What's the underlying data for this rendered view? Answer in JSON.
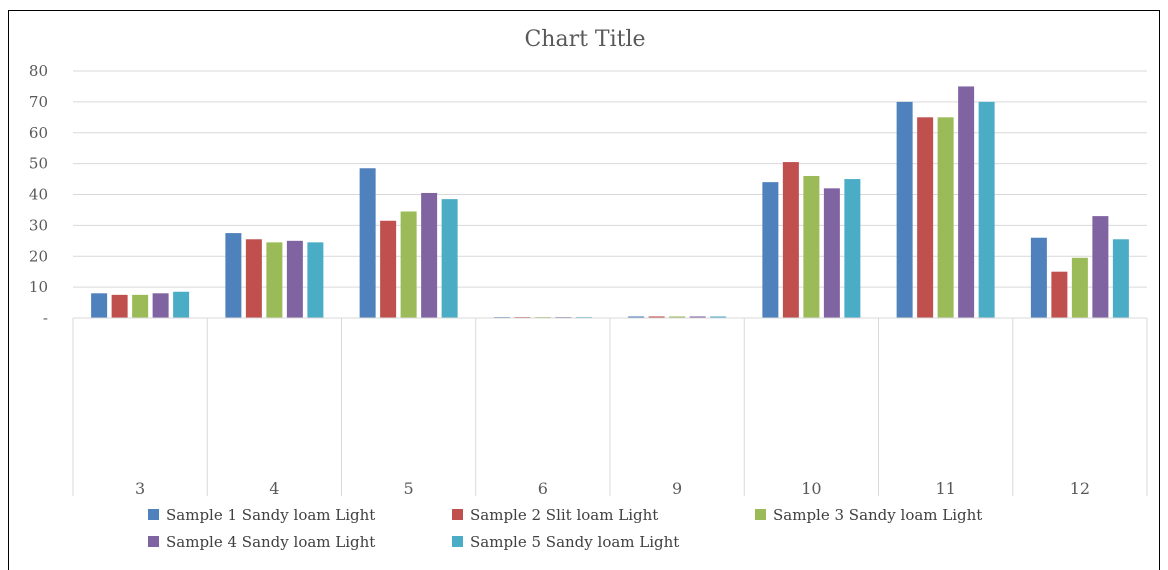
{
  "chart_data": {
    "type": "bar",
    "title": "Chart Title",
    "xlabel": "",
    "ylabel": "",
    "categories": [
      "3",
      "4",
      "5",
      "6",
      "9",
      "10",
      "11",
      "12"
    ],
    "ylim": [
      0,
      80
    ],
    "yticks": [
      "-",
      "10",
      "20",
      "30",
      "40",
      "50",
      "60",
      "70",
      "80"
    ],
    "grid": true,
    "legend_position": "bottom",
    "series": [
      {
        "name": "Sample 1 Sandy loam  Light",
        "color": "#4F81BD",
        "values": [
          8,
          27.5,
          48.5,
          0.3,
          0.5,
          44,
          70,
          26
        ]
      },
      {
        "name": "Sample  2 Slit loam Light",
        "color": "#C0504D",
        "values": [
          7.5,
          25.5,
          31.5,
          0.3,
          0.5,
          50.5,
          65,
          15
        ]
      },
      {
        "name": "Sample  3 Sandy loam Light",
        "color": "#9BBB59",
        "values": [
          7.5,
          24.5,
          34.5,
          0.3,
          0.5,
          46,
          65,
          19.5
        ]
      },
      {
        "name": "Sample  4 Sandy loam Light",
        "color": "#8064A2",
        "values": [
          8,
          25,
          40.5,
          0.3,
          0.5,
          42,
          75,
          33
        ]
      },
      {
        "name": "Sample  5 Sandy loam  Light",
        "color": "#4BACC6",
        "values": [
          8.5,
          24.5,
          38.5,
          0.3,
          0.5,
          45,
          70,
          25.5
        ]
      }
    ]
  }
}
